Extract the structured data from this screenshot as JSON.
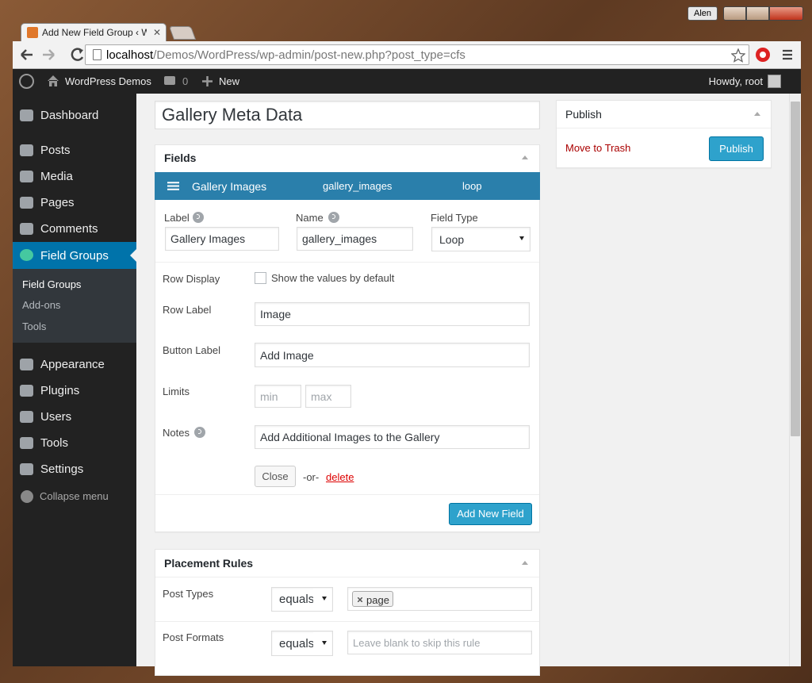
{
  "window": {
    "user": "Alen"
  },
  "browser": {
    "tab_title": "Add New Field Group ‹ W",
    "url": {
      "host": "localhost",
      "path": "/Demos/WordPress/wp-admin/post-new.php?post_type=cfs"
    }
  },
  "admin_bar": {
    "site_name": "WordPress Demos",
    "comment_count": "0",
    "new": "New",
    "account": "Howdy, root"
  },
  "sidebar": {
    "menu": [
      "Dashboard",
      "Posts",
      "Media",
      "Pages",
      "Comments",
      "Field Groups",
      "Appearance",
      "Plugins",
      "Users",
      "Tools",
      "Settings"
    ],
    "submenu": [
      "Field Groups",
      "Add-ons",
      "Tools"
    ],
    "collapse": "Collapse menu"
  },
  "editor": {
    "title": "Gallery Meta Data",
    "fields_box": {
      "heading": "Fields",
      "field_bar": [
        "Gallery Images",
        "gallery_images",
        "loop"
      ],
      "labels": {
        "label": "Label",
        "name": "Name",
        "field_type": "Field Type"
      },
      "values": {
        "label": "Gallery Images",
        "name": "gallery_images",
        "field_type": "Loop"
      },
      "row_display": {
        "label": "Row Display",
        "checkbox": "Show the values by default"
      },
      "row_label": {
        "label": "Row Label",
        "value": "Image"
      },
      "button_label": {
        "label": "Button Label",
        "value": "Add Image"
      },
      "limits": {
        "label": "Limits",
        "min_placeholder": "min",
        "max_placeholder": "max"
      },
      "notes": {
        "label": "Notes",
        "value": "Add Additional Images to the Gallery"
      },
      "close": "Close",
      "or": "-or-",
      "delete": "delete",
      "add_button": "Add New Field"
    },
    "placement_box": {
      "heading": "Placement Rules",
      "rules": [
        {
          "label": "Post Types",
          "operator": "equals",
          "values": [
            "page"
          ]
        },
        {
          "label": "Post Formats",
          "operator": "equals",
          "placeholder": "Leave blank to skip this rule"
        }
      ]
    }
  },
  "publish_box": {
    "heading": "Publish",
    "trash": "Move to Trash",
    "button": "Publish"
  }
}
